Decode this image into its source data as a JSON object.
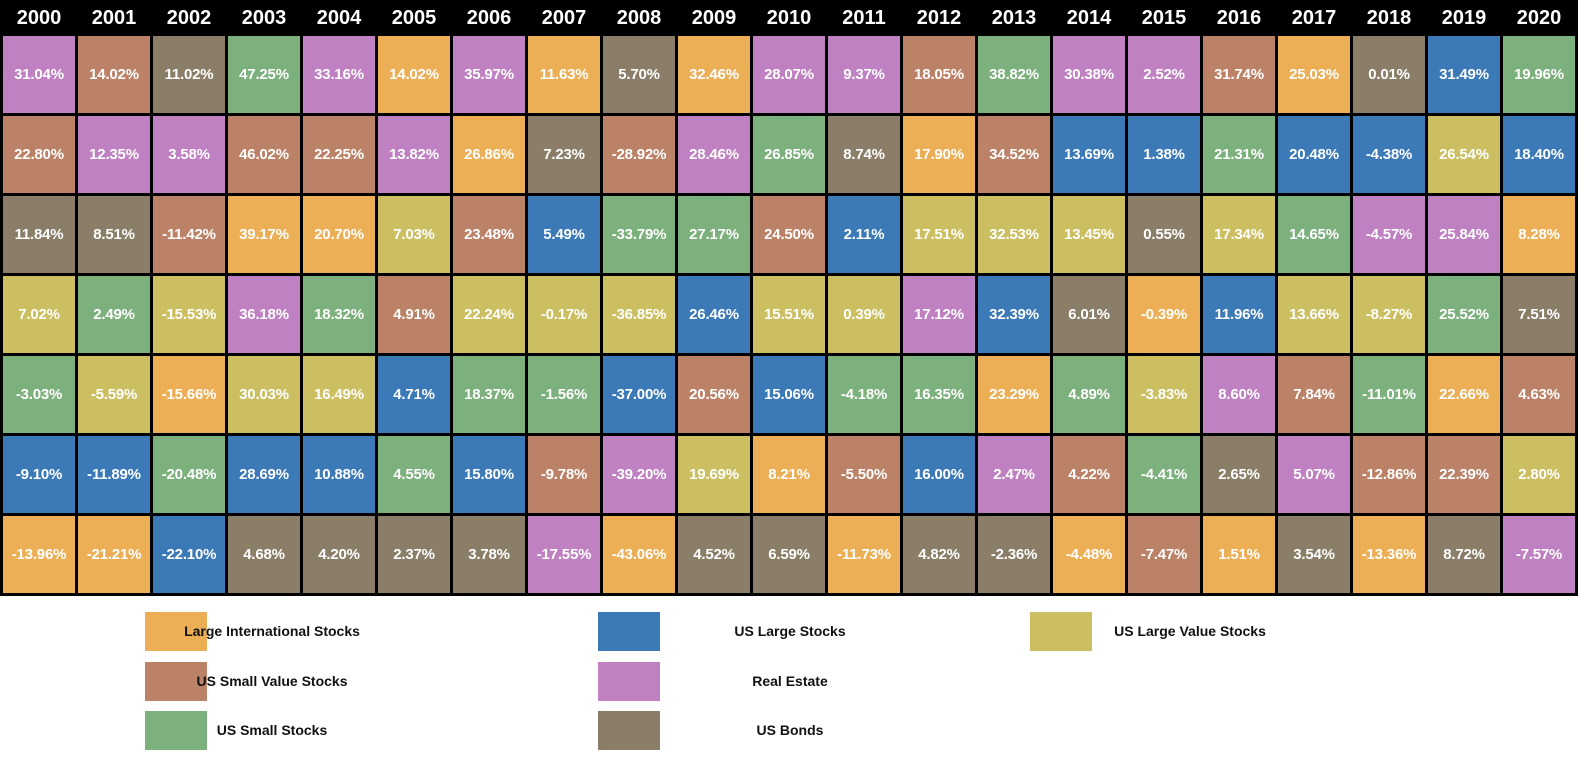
{
  "assets": {
    "intl": {
      "label": "Large International Stocks",
      "color": "#ECAF56"
    },
    "l": {
      "label": "US Large Stocks",
      "color": "#3B79B7"
    },
    "lv": {
      "label": "US Large Value Stocks",
      "color": "#CBBF62"
    },
    "sv": {
      "label": "US Small Value Stocks",
      "color": "#BC8268"
    },
    "re": {
      "label": "Real Estate",
      "color": "#BF81C1"
    },
    "ss": {
      "label": "US Small Stocks",
      "color": "#7CB07C"
    },
    "b": {
      "label": "US Bonds",
      "color": "#8A7E68"
    }
  },
  "chart_data": {
    "type": "heatmap",
    "description": "Annual returns by asset class, ranked best (top) to worst (bottom) for each year",
    "years": [
      "2000",
      "2001",
      "2002",
      "2003",
      "2004",
      "2005",
      "2006",
      "2007",
      "2008",
      "2009",
      "2010",
      "2011",
      "2012",
      "2013",
      "2014",
      "2015",
      "2016",
      "2017",
      "2018",
      "2019",
      "2020"
    ],
    "rows": [
      {
        "cells": [
          {
            "v": "31.04%",
            "a": "re"
          },
          {
            "v": "14.02%",
            "a": "sv"
          },
          {
            "v": "11.02%",
            "a": "b"
          },
          {
            "v": "47.25%",
            "a": "ss"
          },
          {
            "v": "33.16%",
            "a": "re"
          },
          {
            "v": "14.02%",
            "a": "intl"
          },
          {
            "v": "35.97%",
            "a": "re"
          },
          {
            "v": "11.63%",
            "a": "intl"
          },
          {
            "v": "5.70%",
            "a": "b"
          },
          {
            "v": "32.46%",
            "a": "intl"
          },
          {
            "v": "28.07%",
            "a": "re"
          },
          {
            "v": "9.37%",
            "a": "re"
          },
          {
            "v": "18.05%",
            "a": "sv"
          },
          {
            "v": "38.82%",
            "a": "ss"
          },
          {
            "v": "30.38%",
            "a": "re"
          },
          {
            "v": "2.52%",
            "a": "re"
          },
          {
            "v": "31.74%",
            "a": "sv"
          },
          {
            "v": "25.03%",
            "a": "intl"
          },
          {
            "v": "0.01%",
            "a": "b"
          },
          {
            "v": "31.49%",
            "a": "l"
          },
          {
            "v": "19.96%",
            "a": "ss"
          }
        ]
      },
      {
        "cells": [
          {
            "v": "22.80%",
            "a": "sv"
          },
          {
            "v": "12.35%",
            "a": "re"
          },
          {
            "v": "3.58%",
            "a": "re"
          },
          {
            "v": "46.02%",
            "a": "sv"
          },
          {
            "v": "22.25%",
            "a": "sv"
          },
          {
            "v": "13.82%",
            "a": "re"
          },
          {
            "v": "26.86%",
            "a": "intl"
          },
          {
            "v": "7.23%",
            "a": "b"
          },
          {
            "v": "-28.92%",
            "a": "sv"
          },
          {
            "v": "28.46%",
            "a": "re"
          },
          {
            "v": "26.85%",
            "a": "ss"
          },
          {
            "v": "8.74%",
            "a": "b"
          },
          {
            "v": "17.90%",
            "a": "intl"
          },
          {
            "v": "34.52%",
            "a": "sv"
          },
          {
            "v": "13.69%",
            "a": "l"
          },
          {
            "v": "1.38%",
            "a": "l"
          },
          {
            "v": "21.31%",
            "a": "ss"
          },
          {
            "v": "20.48%",
            "a": "l"
          },
          {
            "v": "-4.38%",
            "a": "l"
          },
          {
            "v": "26.54%",
            "a": "lv"
          },
          {
            "v": "18.40%",
            "a": "l"
          }
        ]
      },
      {
        "cells": [
          {
            "v": "11.84%",
            "a": "b"
          },
          {
            "v": "8.51%",
            "a": "b"
          },
          {
            "v": "-11.42%",
            "a": "sv"
          },
          {
            "v": "39.17%",
            "a": "intl"
          },
          {
            "v": "20.70%",
            "a": "intl"
          },
          {
            "v": "7.03%",
            "a": "lv"
          },
          {
            "v": "23.48%",
            "a": "sv"
          },
          {
            "v": "5.49%",
            "a": "l"
          },
          {
            "v": "-33.79%",
            "a": "ss"
          },
          {
            "v": "27.17%",
            "a": "ss"
          },
          {
            "v": "24.50%",
            "a": "sv"
          },
          {
            "v": "2.11%",
            "a": "l"
          },
          {
            "v": "17.51%",
            "a": "lv"
          },
          {
            "v": "32.53%",
            "a": "lv"
          },
          {
            "v": "13.45%",
            "a": "lv"
          },
          {
            "v": "0.55%",
            "a": "b"
          },
          {
            "v": "17.34%",
            "a": "lv"
          },
          {
            "v": "14.65%",
            "a": "ss"
          },
          {
            "v": "-4.57%",
            "a": "re"
          },
          {
            "v": "25.84%",
            "a": "re"
          },
          {
            "v": "8.28%",
            "a": "intl"
          }
        ]
      },
      {
        "cells": [
          {
            "v": "7.02%",
            "a": "lv"
          },
          {
            "v": "2.49%",
            "a": "ss"
          },
          {
            "v": "-15.53%",
            "a": "lv"
          },
          {
            "v": "36.18%",
            "a": "re"
          },
          {
            "v": "18.32%",
            "a": "ss"
          },
          {
            "v": "4.91%",
            "a": "sv"
          },
          {
            "v": "22.24%",
            "a": "lv"
          },
          {
            "v": "-0.17%",
            "a": "lv"
          },
          {
            "v": "-36.85%",
            "a": "lv"
          },
          {
            "v": "26.46%",
            "a": "l"
          },
          {
            "v": "15.51%",
            "a": "lv"
          },
          {
            "v": "0.39%",
            "a": "lv"
          },
          {
            "v": "17.12%",
            "a": "re"
          },
          {
            "v": "32.39%",
            "a": "l"
          },
          {
            "v": "6.01%",
            "a": "b"
          },
          {
            "v": "-0.39%",
            "a": "intl"
          },
          {
            "v": "11.96%",
            "a": "l"
          },
          {
            "v": "13.66%",
            "a": "lv"
          },
          {
            "v": "-8.27%",
            "a": "lv"
          },
          {
            "v": "25.52%",
            "a": "ss"
          },
          {
            "v": "7.51%",
            "a": "b"
          }
        ]
      },
      {
        "cells": [
          {
            "v": "-3.03%",
            "a": "ss"
          },
          {
            "v": "-5.59%",
            "a": "lv"
          },
          {
            "v": "-15.66%",
            "a": "intl"
          },
          {
            "v": "30.03%",
            "a": "lv"
          },
          {
            "v": "16.49%",
            "a": "lv"
          },
          {
            "v": "4.71%",
            "a": "l"
          },
          {
            "v": "18.37%",
            "a": "ss"
          },
          {
            "v": "-1.56%",
            "a": "ss"
          },
          {
            "v": "-37.00%",
            "a": "l"
          },
          {
            "v": "20.56%",
            "a": "sv"
          },
          {
            "v": "15.06%",
            "a": "l"
          },
          {
            "v": "-4.18%",
            "a": "ss"
          },
          {
            "v": "16.35%",
            "a": "ss"
          },
          {
            "v": "23.29%",
            "a": "intl"
          },
          {
            "v": "4.89%",
            "a": "ss"
          },
          {
            "v": "-3.83%",
            "a": "lv"
          },
          {
            "v": "8.60%",
            "a": "re"
          },
          {
            "v": "7.84%",
            "a": "sv"
          },
          {
            "v": "-11.01%",
            "a": "ss"
          },
          {
            "v": "22.66%",
            "a": "intl"
          },
          {
            "v": "4.63%",
            "a": "sv"
          }
        ]
      },
      {
        "cells": [
          {
            "v": "-9.10%",
            "a": "l"
          },
          {
            "v": "-11.89%",
            "a": "l"
          },
          {
            "v": "-20.48%",
            "a": "ss"
          },
          {
            "v": "28.69%",
            "a": "l"
          },
          {
            "v": "10.88%",
            "a": "l"
          },
          {
            "v": "4.55%",
            "a": "ss"
          },
          {
            "v": "15.80%",
            "a": "l"
          },
          {
            "v": "-9.78%",
            "a": "sv"
          },
          {
            "v": "-39.20%",
            "a": "re"
          },
          {
            "v": "19.69%",
            "a": "lv"
          },
          {
            "v": "8.21%",
            "a": "intl"
          },
          {
            "v": "-5.50%",
            "a": "sv"
          },
          {
            "v": "16.00%",
            "a": "l"
          },
          {
            "v": "2.47%",
            "a": "re"
          },
          {
            "v": "4.22%",
            "a": "sv"
          },
          {
            "v": "-4.41%",
            "a": "ss"
          },
          {
            "v": "2.65%",
            "a": "b"
          },
          {
            "v": "5.07%",
            "a": "re"
          },
          {
            "v": "-12.86%",
            "a": "sv"
          },
          {
            "v": "22.39%",
            "a": "sv"
          },
          {
            "v": "2.80%",
            "a": "lv"
          }
        ]
      },
      {
        "cells": [
          {
            "v": "-13.96%",
            "a": "intl"
          },
          {
            "v": "-21.21%",
            "a": "intl"
          },
          {
            "v": "-22.10%",
            "a": "l"
          },
          {
            "v": "4.68%",
            "a": "b"
          },
          {
            "v": "4.20%",
            "a": "b"
          },
          {
            "v": "2.37%",
            "a": "b"
          },
          {
            "v": "3.78%",
            "a": "b"
          },
          {
            "v": "-17.55%",
            "a": "re"
          },
          {
            "v": "-43.06%",
            "a": "intl"
          },
          {
            "v": "4.52%",
            "a": "b"
          },
          {
            "v": "6.59%",
            "a": "b"
          },
          {
            "v": "-11.73%",
            "a": "intl"
          },
          {
            "v": "4.82%",
            "a": "b"
          },
          {
            "v": "-2.36%",
            "a": "b"
          },
          {
            "v": "-4.48%",
            "a": "intl"
          },
          {
            "v": "-7.47%",
            "a": "sv"
          },
          {
            "v": "1.51%",
            "a": "intl"
          },
          {
            "v": "3.54%",
            "a": "b"
          },
          {
            "v": "-13.36%",
            "a": "intl"
          },
          {
            "v": "8.72%",
            "a": "b"
          },
          {
            "v": "-7.57%",
            "a": "re"
          }
        ]
      }
    ]
  },
  "legend": {
    "columns": [
      [
        "intl",
        "sv",
        "ss"
      ],
      [
        "l",
        "re",
        "b"
      ],
      [
        "lv"
      ]
    ]
  }
}
